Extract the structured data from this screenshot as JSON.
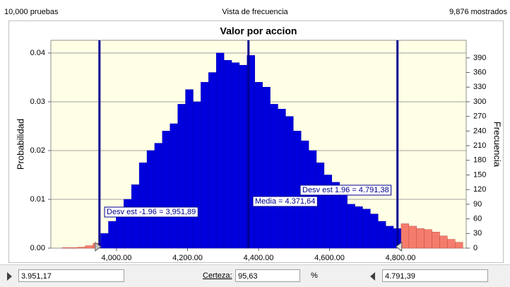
{
  "header": {
    "left": "10,000 pruebas",
    "center": "Vista de frecuencia",
    "right": "9,876 mostrados"
  },
  "chart_data": {
    "type": "histogram",
    "title": "Valor por accion",
    "ylabel": "Probabilidad",
    "y2label": "Frecuencia",
    "bins": [
      3847,
      3868.7,
      3890.4,
      3912.1,
      3933.8,
      3955.5,
      3977.2,
      3998.9,
      4020.6,
      4042.3,
      4064,
      4085.7,
      4107.4,
      4129.1,
      4150.8,
      4172.5,
      4194.2,
      4215.9,
      4237.6,
      4259.3,
      4281,
      4302.7,
      4324.4,
      4346.1,
      4367.8,
      4389.5,
      4411.2,
      4432.9,
      4454.6,
      4476.3,
      4498,
      4519.7,
      4541.4,
      4563.1,
      4584.8,
      4606.5,
      4628.2,
      4649.9,
      4671.6,
      4693.3,
      4715,
      4736.7,
      4758.4,
      4780.1,
      4801.8,
      4823.5,
      4845.2,
      4866.9,
      4888.6,
      4910.3,
      4932,
      4953.7,
      4975.4
    ],
    "series": [
      {
        "name": "Frecuencia",
        "axis": "y2",
        "color": "#0000dd",
        "outside_color": "#f47c6c",
        "values": [
          1,
          1,
          2,
          5,
          10,
          30,
          55,
          80,
          100,
          130,
          175,
          200,
          215,
          240,
          255,
          295,
          325,
          300,
          340,
          360,
          400,
          385,
          380,
          375,
          395,
          340,
          330,
          295,
          285,
          270,
          240,
          220,
          200,
          175,
          150,
          135,
          125,
          90,
          85,
          80,
          70,
          55,
          45,
          40,
          50,
          45,
          40,
          38,
          33,
          25,
          18,
          12
        ]
      }
    ],
    "xlim": [
      3815,
      4985
    ],
    "xticks": [
      {
        "value": 4000,
        "label": "4,000.00"
      },
      {
        "value": 4200,
        "label": "4,200.00"
      },
      {
        "value": 4400,
        "label": "4,400.00"
      },
      {
        "value": 4600,
        "label": "4,600.00"
      },
      {
        "value": 4800,
        "label": "4,800.00"
      }
    ],
    "ylim": [
      0,
      0.0426
    ],
    "yticks": [
      {
        "value": 0,
        "label": "0.00"
      },
      0.01,
      0.02,
      0.03,
      0.04
    ],
    "y2lim": [
      0,
      426
    ],
    "y2ticks": [
      0,
      30,
      60,
      90,
      120,
      150,
      180,
      210,
      240,
      270,
      300,
      330,
      360,
      390
    ],
    "grid": true,
    "markers": [
      {
        "value": 3951.89,
        "label": "Desv est -1.96 = 3,951,89"
      },
      {
        "value": 4371.64,
        "label": "Media = 4.371,64"
      },
      {
        "value": 4791.38,
        "label": "Desv est 1.96 = 4.791,38"
      }
    ]
  },
  "controls": {
    "left_value": "3.951,17",
    "certainty_label": "Certeza:",
    "certainty": "95,63",
    "unit": "%",
    "right_value": "4.791,39"
  }
}
